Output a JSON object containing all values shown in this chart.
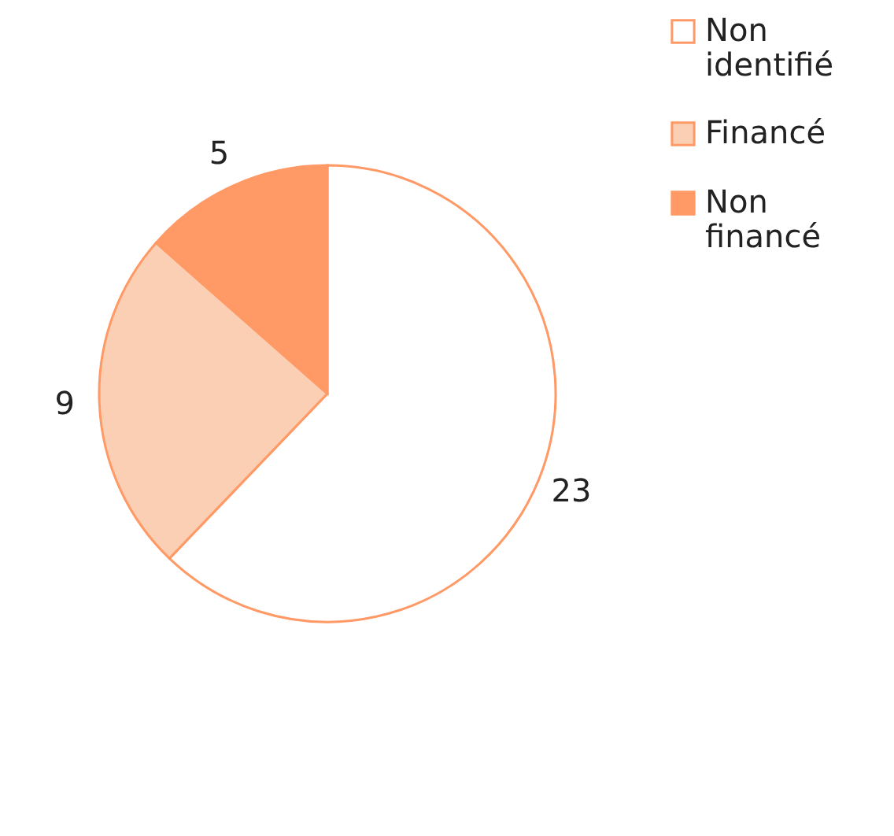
{
  "chart_data": {
    "type": "pie",
    "categories": [
      "Non identifié",
      "Financé",
      "Non financé"
    ],
    "values": [
      23,
      9,
      5
    ],
    "colors": [
      "#ffffff",
      "#fbcfb4",
      "#ff9966"
    ],
    "data_labels": true,
    "legend": "right"
  }
}
